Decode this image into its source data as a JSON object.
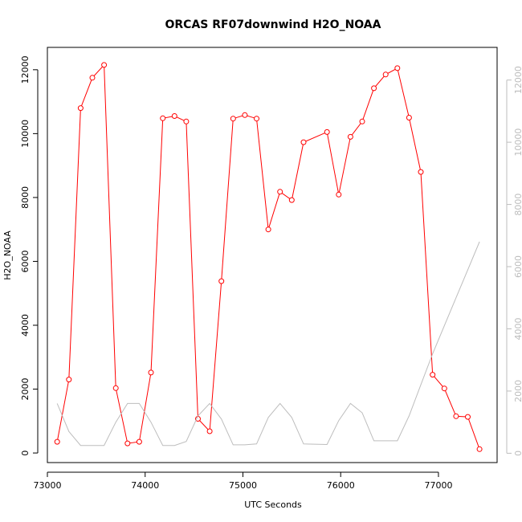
{
  "chart_data": {
    "type": "line",
    "title": "ORCAS RF07downwind H2O_NOAA",
    "xlabel": "UTC Seconds",
    "ylabel": "H2O_NOAA",
    "xlim": [
      73000,
      77600
    ],
    "ylim": [
      -300,
      12700
    ],
    "y2lim": [
      -300,
      13050
    ],
    "x_ticks": [
      73000,
      74000,
      75000,
      76000,
      77000
    ],
    "x_tick_labels": [
      "73000",
      "74000",
      "75000",
      "76000",
      "77000"
    ],
    "y_ticks": [
      0,
      2000,
      4000,
      6000,
      8000,
      10000,
      12000
    ],
    "y_tick_labels": [
      "0",
      "2000",
      "4000",
      "6000",
      "8000",
      "10000",
      "12000"
    ],
    "y2_ticks": [
      0,
      2000,
      4000,
      6000,
      8000,
      10000,
      12000
    ],
    "y2_tick_labels": [
      "0",
      "2000",
      "4000",
      "6000",
      "8000",
      "10000",
      "12000"
    ],
    "grid": false,
    "series": [
      {
        "color": "#ff0000",
        "axis": "left",
        "markers": true,
        "x": [
          73100,
          73220,
          73340,
          73460,
          73580,
          73700,
          73820,
          73940,
          74060,
          74180,
          74300,
          74420,
          74540,
          74660,
          74780,
          74900,
          75020,
          75140,
          75260,
          75380,
          75500,
          75620,
          75860,
          75980,
          76100,
          76220,
          76340,
          76460,
          76580,
          76700,
          76820,
          76940,
          77060,
          77180,
          77300,
          77420
        ],
        "values": [
          350,
          2300,
          10800,
          11750,
          12150,
          2030,
          300,
          350,
          2520,
          10480,
          10550,
          10380,
          1070,
          680,
          5380,
          10470,
          10580,
          10470,
          7000,
          8180,
          7920,
          9730,
          10050,
          8090,
          9900,
          10380,
          11420,
          11850,
          12050,
          10500,
          8800,
          2450,
          2020,
          1150,
          1130,
          120
        ]
      },
      {
        "color": "#bdbdbd",
        "axis": "right",
        "markers": false,
        "x": [
          73100,
          73220,
          73340,
          73460,
          73580,
          73700,
          73820,
          73940,
          74060,
          74180,
          74300,
          74420,
          74540,
          74660,
          74780,
          74900,
          75020,
          75140,
          75260,
          75380,
          75500,
          75620,
          75860,
          75980,
          76100,
          76220,
          76340,
          76460,
          76580,
          76700,
          76820,
          76940,
          77060,
          77180,
          77300,
          77420
        ],
        "values": [
          1600,
          700,
          250,
          250,
          250,
          1000,
          1600,
          1600,
          1000,
          250,
          250,
          380,
          1200,
          1600,
          1100,
          270,
          270,
          300,
          1150,
          1600,
          1150,
          300,
          280,
          1050,
          1600,
          1300,
          400,
          400,
          400,
          1200,
          2200,
          3200,
          4100,
          5000,
          5900,
          6800
        ]
      }
    ]
  }
}
